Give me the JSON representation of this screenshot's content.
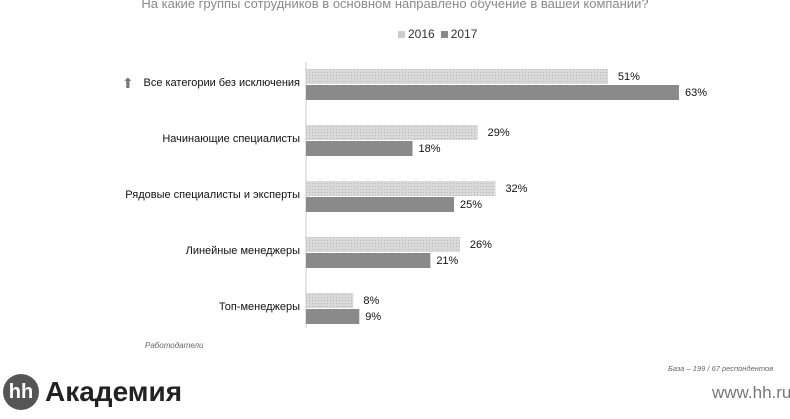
{
  "chart_data": {
    "type": "bar",
    "orientation": "horizontal",
    "title": "На какие группы сотрудников в основном направлено обучение в вашей компании?",
    "categories": [
      "Все категории без исключения",
      "Начинающие специалисты",
      "Рядовые специалисты и эксперты",
      "Линейные менеджеры",
      "Топ-менеджеры"
    ],
    "series": [
      {
        "name": "2016",
        "values": [
          51,
          29,
          32,
          26,
          8
        ],
        "color": "#cfcfcf",
        "pattern": "dotted"
      },
      {
        "name": "2017",
        "values": [
          63,
          18,
          25,
          21,
          9
        ],
        "color": "#8a8a8a"
      }
    ],
    "data_labels": {
      "2016": [
        "51%",
        "29%",
        "32%",
        "26%",
        "8%"
      ],
      "2017": [
        "63%",
        "18%",
        "25%",
        "21%",
        "9%"
      ]
    },
    "legend": "top",
    "grid": false,
    "xlim": [
      0,
      63
    ]
  },
  "arrow_icon": "arrow-up-icon",
  "note": "Работодатели",
  "base": "База – 199 / 67 респондентов",
  "logo": {
    "mark": "hh",
    "text": "Академия"
  },
  "url": "www.hh.ru"
}
